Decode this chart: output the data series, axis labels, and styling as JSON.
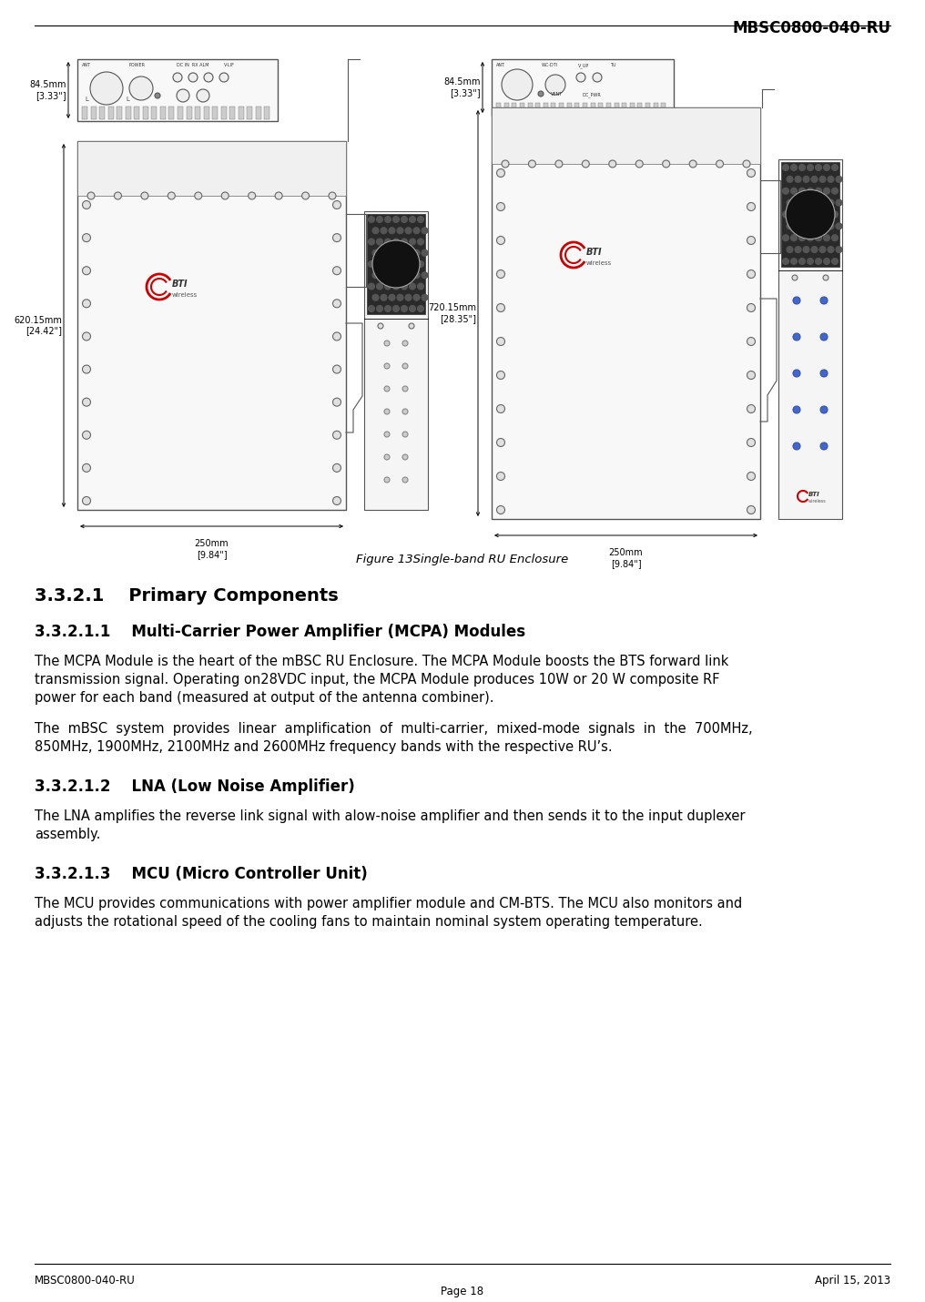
{
  "header_text": "MBSC0800-040-RU",
  "footer_left": "MBSC0800-040-RU",
  "footer_right": "April 15, 2013",
  "footer_center": "Page 18",
  "figure_caption": "Figure 13Single-band RU Enclosure",
  "section_331": "3.3.2.1    Primary Components",
  "section_3311": "3.3.2.1.1    Multi-Carrier Power Amplifier (MCPA) Modules",
  "para_3311_1a": "The MCPA Module is the heart of the mBSC RU Enclosure. The MCPA Module boosts the BTS forward link",
  "para_3311_1b": "transmission signal. Operating on28VDC input, the MCPA Module produces 10W or 20 W composite RF",
  "para_3311_1c": "power for each band (measured at output of the antenna combiner).",
  "para_3311_2a": "The  mBSC  system  provides  linear  amplification  of  multi-carrier,  mixed-mode  signals  in  the  700MHz,",
  "para_3311_2b": "850MHz, 1900MHz, 2100MHz and 2600MHz frequency bands with the respective RU’s.",
  "section_3312": "3.3.2.1.2    LNA (Low Noise Amplifier)",
  "para_3312a": "The LNA amplifies the reverse link signal with alow-noise amplifier and then sends it to the input duplexer",
  "para_3312b": "assembly.",
  "section_3313": "3.3.2.1.3    MCU (Micro Controller Unit)",
  "para_3313a": "The MCU provides communications with power amplifier module and CM-BTS. The MCU also monitors and",
  "para_3313b": "adjusts the rotational speed of the cooling fans to maintain nominal system operating temperature.",
  "bg_color": "#ffffff",
  "text_color": "#000000",
  "dim_label_left1": "84.5mm\n[3.33\"]",
  "dim_label_left2": "620.15mm\n[24.42\"]",
  "dim_label_right1": "84.5mm\n[3.33\"]",
  "dim_label_right2": "720.15mm\n[28.35\"]",
  "dim_label_w1": "250mm\n[9.84\"]",
  "dim_label_w2": "250mm\n[9.84\"]"
}
